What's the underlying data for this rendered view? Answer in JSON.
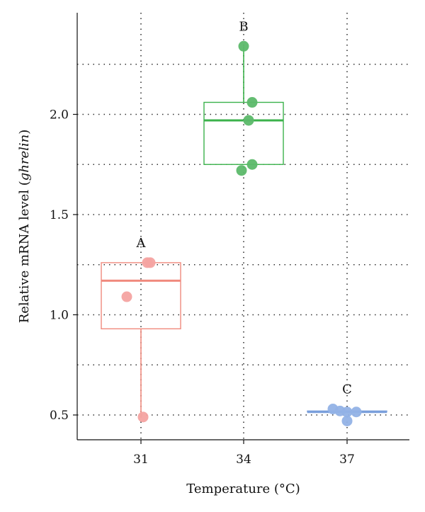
{
  "chart_data": {
    "type": "boxplot",
    "xlabel": "Temperature (°C)",
    "ylabel_prefix": "Relative mRNA level (",
    "ylabel_gene": "ghrelin",
    "ylabel_suffix": ")",
    "ylim": [
      0.38,
      2.5
    ],
    "yticks": [
      {
        "value": 0.5,
        "label": "0.5"
      },
      {
        "value": 1.0,
        "label": "1.0"
      },
      {
        "value": 1.5,
        "label": "1.5"
      },
      {
        "value": 2.0,
        "label": "2.0"
      }
    ],
    "minor_grid_y": [
      0.75,
      1.25,
      1.75,
      2.25
    ],
    "grid": true,
    "groups": [
      {
        "category": "31",
        "letter": "A",
        "color": "#f08a7e",
        "point_color": "#f4a3a1",
        "box": {
          "q1": 0.93,
          "median": 1.17,
          "q3": 1.26,
          "whisker_low": 0.49,
          "whisker_high": 1.26
        },
        "points": [
          {
            "jitter": 0.9,
            "y": 1.26
          },
          {
            "jitter": 1.3,
            "y": 1.26
          },
          {
            "jitter": -2.0,
            "y": 1.09
          },
          {
            "jitter": 0.3,
            "y": 0.49
          }
        ]
      },
      {
        "category": "34",
        "letter": "B",
        "color": "#3bb24b",
        "point_color": "#5cb96a",
        "box": {
          "q1": 1.75,
          "median": 1.97,
          "q3": 2.06,
          "whisker_low": 1.75,
          "whisker_high": 2.34
        },
        "points": [
          {
            "jitter": 0.0,
            "y": 2.34
          },
          {
            "jitter": 1.2,
            "y": 2.06
          },
          {
            "jitter": 0.7,
            "y": 1.97
          },
          {
            "jitter": 1.2,
            "y": 1.75
          },
          {
            "jitter": -0.3,
            "y": 1.72
          }
        ]
      },
      {
        "category": "37",
        "letter": "C",
        "color": "#7a9fdc",
        "point_color": "#92b2e6",
        "box": {
          "q1": 0.515,
          "median": 0.515,
          "q3": 0.52,
          "whisker_low": 0.515,
          "whisker_high": 0.52
        },
        "points": [
          {
            "jitter": -2.0,
            "y": 0.53
          },
          {
            "jitter": -1.0,
            "y": 0.52
          },
          {
            "jitter": 0.0,
            "y": 0.515
          },
          {
            "jitter": 1.3,
            "y": 0.515
          },
          {
            "jitter": 0.0,
            "y": 0.47
          }
        ]
      }
    ]
  }
}
